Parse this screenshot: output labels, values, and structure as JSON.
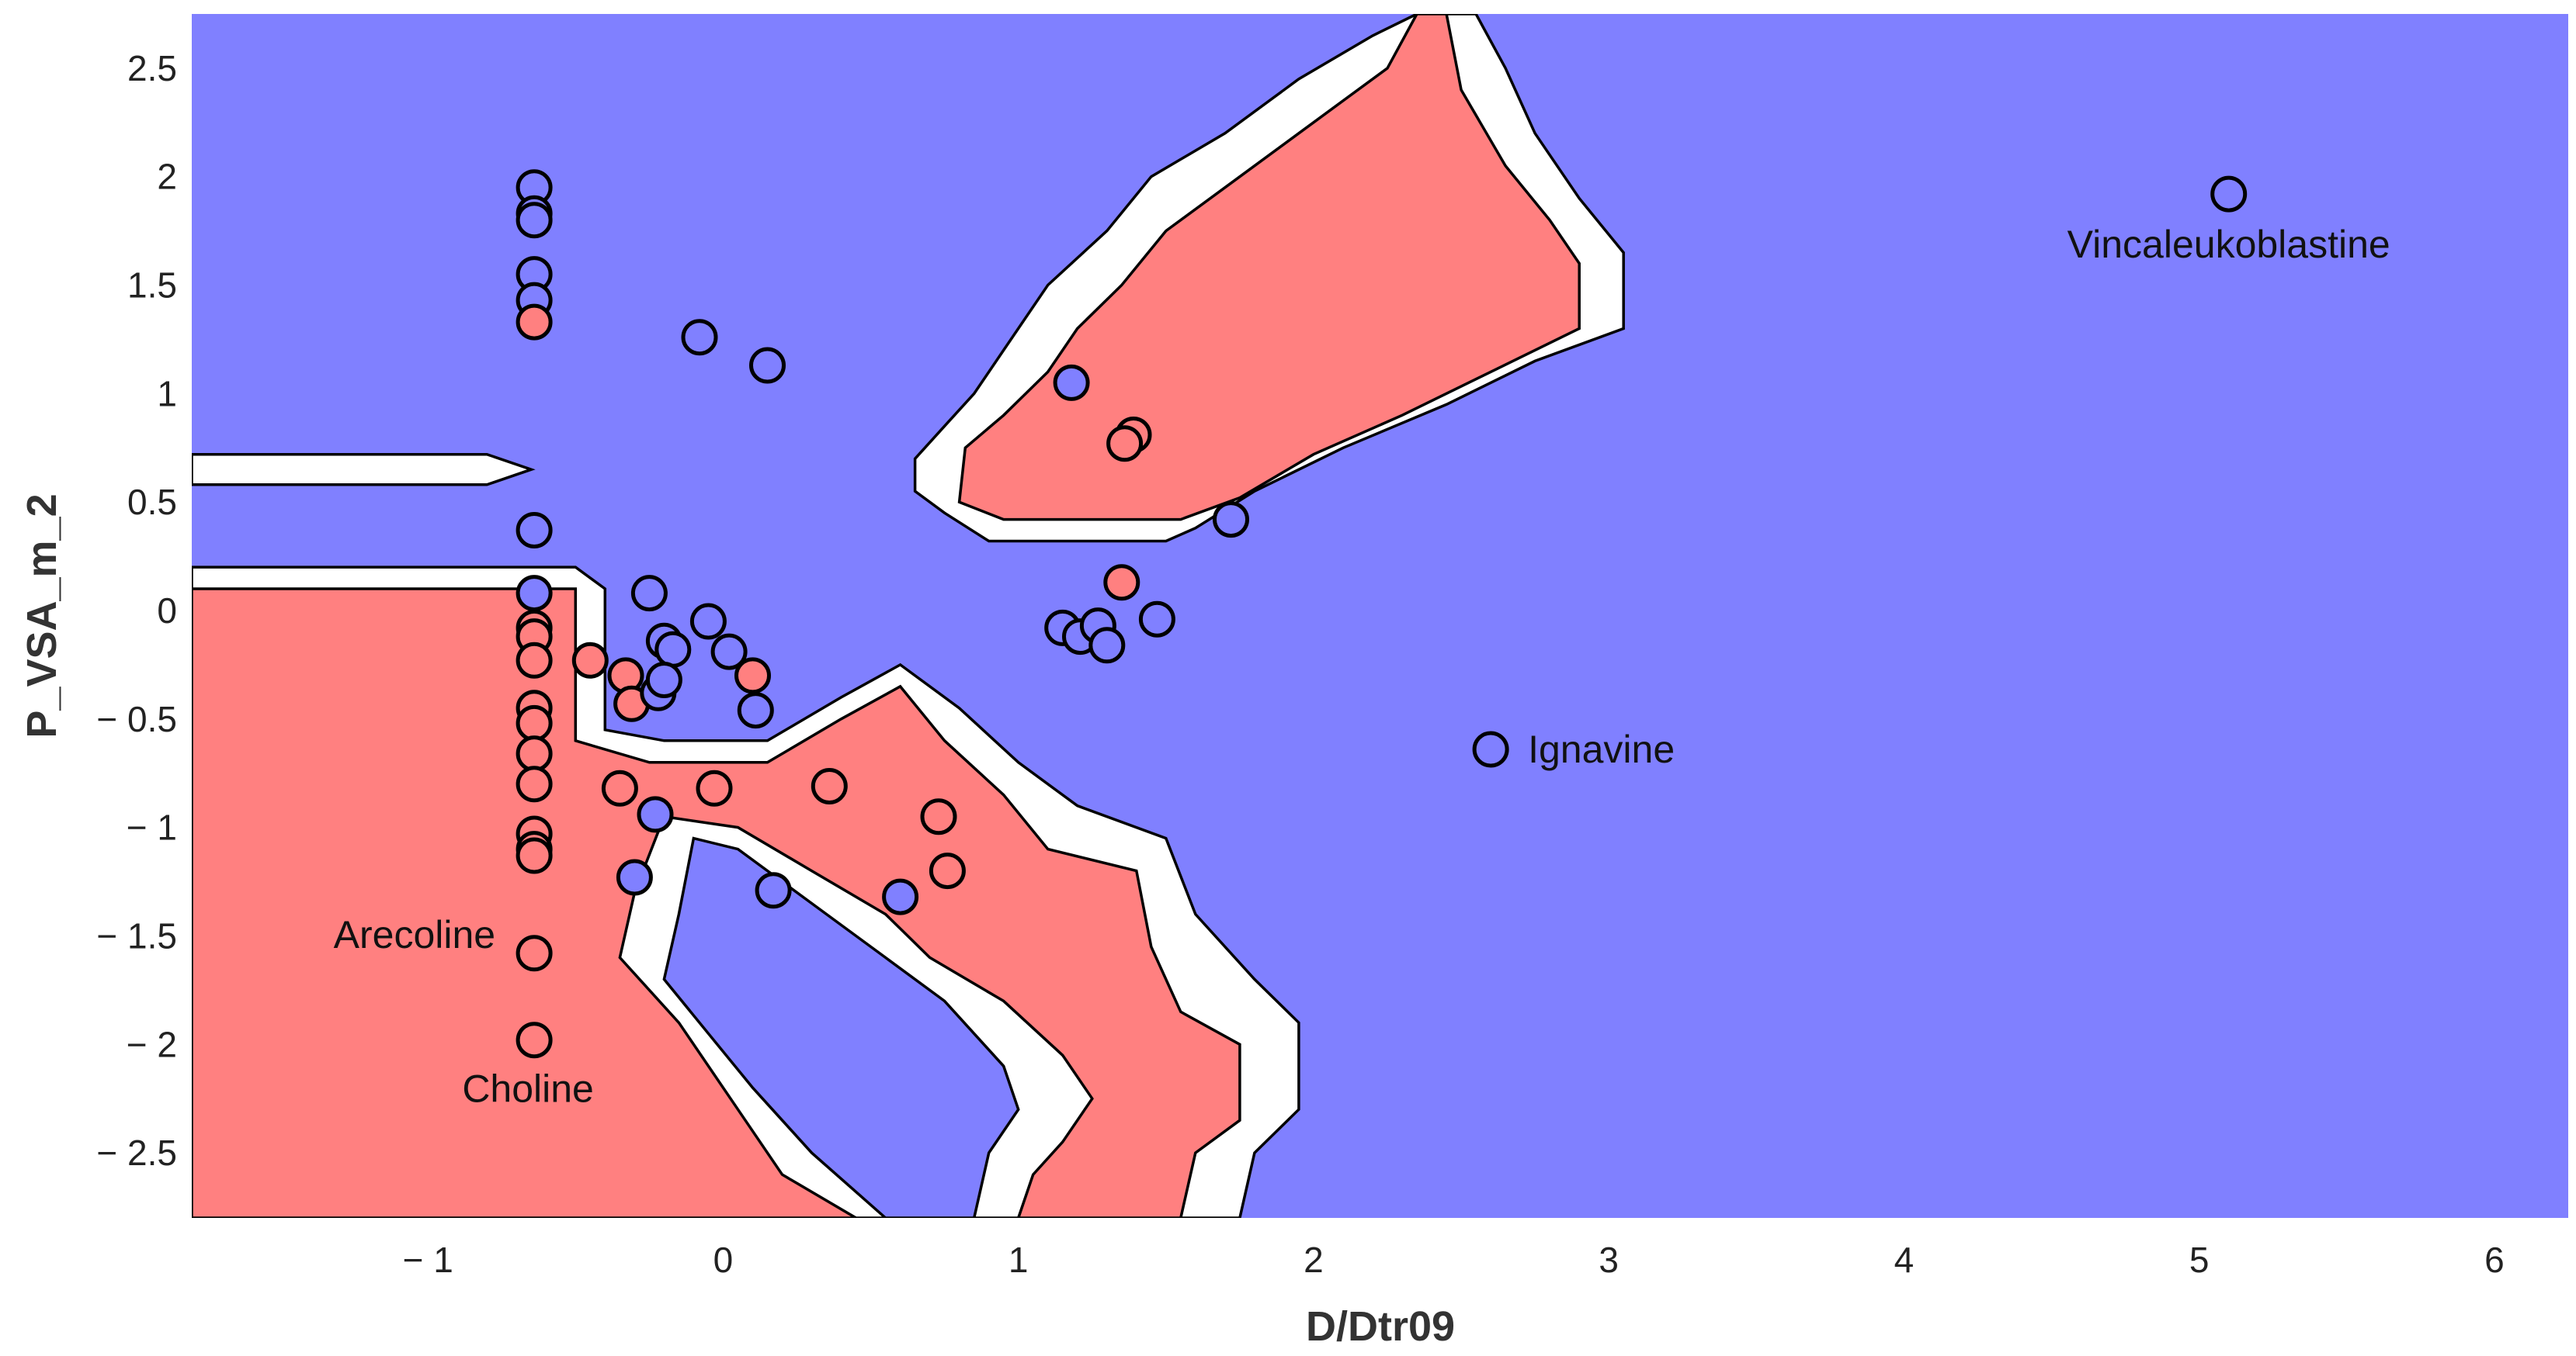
{
  "colors": {
    "class_blue": "#8080ff",
    "class_red": "#ff8080",
    "margin": "#ffffff",
    "outline": "#000000"
  },
  "chart_data": {
    "type": "scatter",
    "title": "",
    "xlabel": "D/Dtr09",
    "ylabel": "P_VSA_m_2",
    "xlim": [
      -1.8,
      6.25
    ],
    "ylim": [
      -2.8,
      2.75
    ],
    "xticks": [
      -1,
      0,
      1,
      2,
      3,
      4,
      5,
      6
    ],
    "yticks": [
      2.5,
      2,
      1.5,
      1,
      0.5,
      0,
      -0.5,
      -1,
      -1.5,
      -2,
      -2.5
    ],
    "grid": false,
    "background_class": "blue",
    "regions": [
      {
        "class": "margin",
        "vertices": [
          [
            -1.8,
            0.72
          ],
          [
            -0.8,
            0.72
          ],
          [
            -0.65,
            0.65
          ],
          [
            -0.8,
            0.58
          ],
          [
            -1.8,
            0.58
          ]
        ]
      },
      {
        "class": "margin",
        "vertices": [
          [
            -1.8,
            0.2
          ],
          [
            -0.5,
            0.2
          ],
          [
            -0.4,
            0.1
          ],
          [
            -0.4,
            -0.55
          ],
          [
            -0.2,
            -0.6
          ],
          [
            0.15,
            -0.6
          ],
          [
            0.4,
            -0.4
          ],
          [
            0.6,
            -0.25
          ],
          [
            0.8,
            -0.45
          ],
          [
            1.0,
            -0.7
          ],
          [
            1.2,
            -0.9
          ],
          [
            1.5,
            -1.05
          ],
          [
            1.6,
            -1.4
          ],
          [
            1.8,
            -1.7
          ],
          [
            1.95,
            -1.9
          ],
          [
            1.95,
            -2.3
          ],
          [
            1.8,
            -2.5
          ],
          [
            1.75,
            -2.8
          ],
          [
            -1.8,
            -2.8
          ]
        ]
      },
      {
        "class": "red",
        "vertices": [
          [
            -1.8,
            0.1
          ],
          [
            -0.5,
            0.1
          ],
          [
            -0.5,
            -0.6
          ],
          [
            -0.25,
            -0.7
          ],
          [
            0.15,
            -0.7
          ],
          [
            0.4,
            -0.5
          ],
          [
            0.6,
            -0.35
          ],
          [
            0.75,
            -0.6
          ],
          [
            0.95,
            -0.85
          ],
          [
            1.1,
            -1.1
          ],
          [
            1.4,
            -1.2
          ],
          [
            1.45,
            -1.55
          ],
          [
            1.55,
            -1.85
          ],
          [
            1.75,
            -2.0
          ],
          [
            1.75,
            -2.35
          ],
          [
            1.6,
            -2.5
          ],
          [
            1.55,
            -2.8
          ],
          [
            -1.8,
            -2.8
          ]
        ]
      },
      {
        "class": "margin",
        "vertices": [
          [
            -0.3,
            -1.3
          ],
          [
            -0.2,
            -0.95
          ],
          [
            0.05,
            -1.0
          ],
          [
            0.3,
            -1.2
          ],
          [
            0.55,
            -1.4
          ],
          [
            0.7,
            -1.6
          ],
          [
            0.95,
            -1.8
          ],
          [
            1.15,
            -2.05
          ],
          [
            1.25,
            -2.25
          ],
          [
            1.15,
            -2.45
          ],
          [
            1.05,
            -2.6
          ],
          [
            1.0,
            -2.8
          ],
          [
            0.45,
            -2.8
          ],
          [
            0.2,
            -2.6
          ],
          [
            0.05,
            -2.3
          ],
          [
            -0.15,
            -1.9
          ],
          [
            -0.35,
            -1.6
          ]
        ]
      },
      {
        "class": "blue",
        "vertices": [
          [
            -0.15,
            -1.4
          ],
          [
            -0.1,
            -1.05
          ],
          [
            0.05,
            -1.1
          ],
          [
            0.3,
            -1.35
          ],
          [
            0.55,
            -1.6
          ],
          [
            0.75,
            -1.8
          ],
          [
            0.95,
            -2.1
          ],
          [
            1.0,
            -2.3
          ],
          [
            0.9,
            -2.5
          ],
          [
            0.85,
            -2.8
          ],
          [
            0.55,
            -2.8
          ],
          [
            0.3,
            -2.5
          ],
          [
            0.1,
            -2.2
          ],
          [
            -0.05,
            -1.95
          ],
          [
            -0.2,
            -1.7
          ]
        ]
      },
      {
        "class": "margin",
        "vertices": [
          [
            0.65,
            0.7
          ],
          [
            0.75,
            0.85
          ],
          [
            0.85,
            1.0
          ],
          [
            0.95,
            1.2
          ],
          [
            1.1,
            1.5
          ],
          [
            1.3,
            1.75
          ],
          [
            1.45,
            2.0
          ],
          [
            1.7,
            2.2
          ],
          [
            1.95,
            2.45
          ],
          [
            2.2,
            2.65
          ],
          [
            2.35,
            2.75
          ],
          [
            2.55,
            2.75
          ],
          [
            2.65,
            2.5
          ],
          [
            2.75,
            2.2
          ],
          [
            2.9,
            1.9
          ],
          [
            3.05,
            1.65
          ],
          [
            3.05,
            1.3
          ],
          [
            2.75,
            1.15
          ],
          [
            2.45,
            0.95
          ],
          [
            2.1,
            0.75
          ],
          [
            1.8,
            0.55
          ],
          [
            1.6,
            0.38
          ],
          [
            1.5,
            0.32
          ],
          [
            0.9,
            0.32
          ],
          [
            0.75,
            0.45
          ],
          [
            0.65,
            0.55
          ]
        ]
      },
      {
        "class": "red",
        "vertices": [
          [
            0.8,
            0.5
          ],
          [
            0.82,
            0.75
          ],
          [
            0.95,
            0.9
          ],
          [
            1.1,
            1.1
          ],
          [
            1.2,
            1.3
          ],
          [
            1.35,
            1.5
          ],
          [
            1.5,
            1.75
          ],
          [
            1.7,
            1.95
          ],
          [
            1.95,
            2.2
          ],
          [
            2.25,
            2.5
          ],
          [
            2.35,
            2.75
          ],
          [
            2.45,
            2.75
          ],
          [
            2.5,
            2.4
          ],
          [
            2.65,
            2.05
          ],
          [
            2.8,
            1.8
          ],
          [
            2.9,
            1.6
          ],
          [
            2.9,
            1.3
          ],
          [
            2.6,
            1.1
          ],
          [
            2.3,
            0.9
          ],
          [
            2.0,
            0.72
          ],
          [
            1.75,
            0.52
          ],
          [
            1.55,
            0.42
          ],
          [
            0.95,
            0.42
          ]
        ]
      }
    ],
    "points": [
      {
        "x": -0.64,
        "y": 1.95,
        "class": "blue"
      },
      {
        "x": -0.64,
        "y": 1.83,
        "class": "blue"
      },
      {
        "x": -0.64,
        "y": 1.8,
        "class": "blue"
      },
      {
        "x": -0.64,
        "y": 1.55,
        "class": "blue"
      },
      {
        "x": -0.64,
        "y": 1.43,
        "class": "blue"
      },
      {
        "x": -0.64,
        "y": 1.33,
        "class": "red"
      },
      {
        "x": -0.64,
        "y": 0.37,
        "class": "blue"
      },
      {
        "x": -0.64,
        "y": 0.08,
        "class": "blue"
      },
      {
        "x": -0.64,
        "y": -0.08,
        "class": "red"
      },
      {
        "x": -0.64,
        "y": -0.12,
        "class": "red"
      },
      {
        "x": -0.64,
        "y": -0.23,
        "class": "red"
      },
      {
        "x": -0.64,
        "y": -0.45,
        "class": "red"
      },
      {
        "x": -0.64,
        "y": -0.52,
        "class": "red"
      },
      {
        "x": -0.64,
        "y": -0.66,
        "class": "red"
      },
      {
        "x": -0.64,
        "y": -0.8,
        "class": "red"
      },
      {
        "x": -0.64,
        "y": -1.03,
        "class": "red"
      },
      {
        "x": -0.64,
        "y": -1.1,
        "class": "red"
      },
      {
        "x": -0.64,
        "y": -1.13,
        "class": "red"
      },
      {
        "x": -0.64,
        "y": -1.58,
        "class": "red"
      },
      {
        "x": -0.64,
        "y": -1.98,
        "class": "red"
      },
      {
        "x": -0.45,
        "y": -0.23,
        "class": "red"
      },
      {
        "x": -0.33,
        "y": -0.3,
        "class": "red"
      },
      {
        "x": -0.31,
        "y": -0.43,
        "class": "red"
      },
      {
        "x": -0.35,
        "y": -0.82,
        "class": "red"
      },
      {
        "x": -0.22,
        "y": -0.38,
        "class": "blue"
      },
      {
        "x": -0.25,
        "y": 0.08,
        "class": "blue"
      },
      {
        "x": -0.2,
        "y": -0.14,
        "class": "blue"
      },
      {
        "x": -0.17,
        "y": -0.18,
        "class": "blue"
      },
      {
        "x": -0.2,
        "y": -0.32,
        "class": "blue"
      },
      {
        "x": -0.05,
        "y": -0.05,
        "class": "blue"
      },
      {
        "x": 0.02,
        "y": -0.19,
        "class": "blue"
      },
      {
        "x": 0.1,
        "y": -0.3,
        "class": "red"
      },
      {
        "x": 0.11,
        "y": -0.46,
        "class": "blue"
      },
      {
        "x": -0.03,
        "y": -0.82,
        "class": "red"
      },
      {
        "x": -0.23,
        "y": -0.94,
        "class": "blue"
      },
      {
        "x": -0.3,
        "y": -1.23,
        "class": "blue"
      },
      {
        "x": 0.17,
        "y": -1.29,
        "class": "blue"
      },
      {
        "x": 0.36,
        "y": -0.81,
        "class": "red"
      },
      {
        "x": 0.6,
        "y": -1.32,
        "class": "blue"
      },
      {
        "x": 0.73,
        "y": -0.95,
        "class": "red"
      },
      {
        "x": 0.76,
        "y": -1.2,
        "class": "red"
      },
      {
        "x": -0.08,
        "y": 1.26,
        "class": "blue"
      },
      {
        "x": 0.15,
        "y": 1.13,
        "class": "blue"
      },
      {
        "x": 1.18,
        "y": 1.05,
        "class": "blue"
      },
      {
        "x": 1.39,
        "y": 0.81,
        "class": "red"
      },
      {
        "x": 1.36,
        "y": 0.77,
        "class": "red"
      },
      {
        "x": 1.72,
        "y": 0.42,
        "class": "blue"
      },
      {
        "x": 1.35,
        "y": 0.13,
        "class": "red"
      },
      {
        "x": 1.47,
        "y": -0.04,
        "class": "blue"
      },
      {
        "x": 1.15,
        "y": -0.08,
        "class": "blue"
      },
      {
        "x": 1.21,
        "y": -0.12,
        "class": "blue"
      },
      {
        "x": 1.27,
        "y": -0.07,
        "class": "blue"
      },
      {
        "x": 1.3,
        "y": -0.16,
        "class": "blue"
      },
      {
        "x": 2.6,
        "y": -0.64,
        "class": "blue"
      },
      {
        "x": 5.1,
        "y": 1.92,
        "class": "blue"
      }
    ],
    "annotations": [
      {
        "text": "Vincaleukoblastine",
        "x": 5.1,
        "y": 1.92,
        "anchor": "below"
      },
      {
        "text": "Ignavine",
        "x": 2.6,
        "y": -0.64,
        "anchor": "right"
      },
      {
        "text": "Arecoline",
        "x": -0.64,
        "y": -1.58,
        "anchor": "left"
      },
      {
        "text": "Choline",
        "x": -0.64,
        "y": -1.98,
        "anchor": "below-left"
      }
    ]
  }
}
